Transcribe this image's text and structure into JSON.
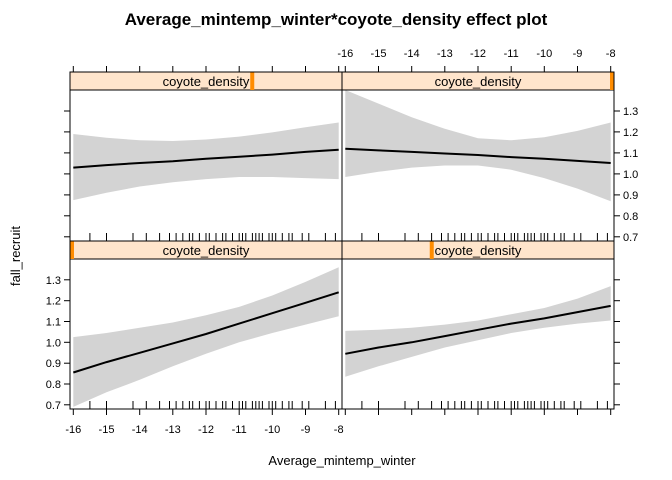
{
  "chart_data": {
    "type": "line",
    "title": "Average_mintemp_winter*coyote_density effect plot",
    "xlabel": "Average_mintemp_winter",
    "ylabel": "fall_recruit",
    "xlim": [
      -16.1,
      -7.9
    ],
    "ylim": [
      0.68,
      1.4
    ],
    "x_ticks": [
      -16,
      -15,
      -14,
      -13,
      -12,
      -11,
      -10,
      -9,
      -8
    ],
    "y_ticks": [
      0.7,
      0.8,
      0.9,
      1.0,
      1.1,
      1.2,
      1.3
    ],
    "y_tick_labels": [
      "0.7",
      "0.8",
      "0.9",
      "1.0",
      "1.1",
      "1.2",
      "1.3"
    ],
    "strip_label": "coyote_density",
    "strip_color": "#ffe5cc",
    "indicator_color": "#ff8c00",
    "band_color": "#d3d3d3",
    "line_color": "#000000",
    "rug_x": [
      -15.5,
      -15.0,
      -14.2,
      -13.8,
      -13.4,
      -13.1,
      -12.9,
      -12.7,
      -12.5,
      -12.4,
      -12.2,
      -12.0,
      -11.9,
      -11.7,
      -11.5,
      -11.4,
      -11.2,
      -11.0,
      -10.9,
      -10.8,
      -10.6,
      -10.5,
      -10.4,
      -10.3,
      -10.1,
      -10.0,
      -9.9,
      -9.7,
      -9.5,
      -9.4,
      -9.1,
      -8.9,
      -8.4,
      -8.1
    ],
    "panels": [
      {
        "position": "bottom-left",
        "indicator_fraction": 0.0,
        "x": [
          -16,
          -15,
          -14,
          -13,
          -12,
          -11,
          -10,
          -9,
          -8
        ],
        "fit": [
          0.855,
          0.905,
          0.95,
          0.995,
          1.04,
          1.09,
          1.14,
          1.19,
          1.24
        ],
        "lower": [
          0.69,
          0.76,
          0.82,
          0.885,
          0.945,
          1.0,
          1.045,
          1.085,
          1.125
        ],
        "upper": [
          1.025,
          1.045,
          1.07,
          1.095,
          1.13,
          1.17,
          1.225,
          1.29,
          1.36
        ]
      },
      {
        "position": "bottom-right",
        "indicator_fraction": 0.33,
        "x": [
          -16,
          -15,
          -14,
          -13,
          -12,
          -11,
          -10,
          -9,
          -8
        ],
        "fit": [
          0.945,
          0.975,
          1.0,
          1.03,
          1.06,
          1.09,
          1.115,
          1.145,
          1.175
        ],
        "lower": [
          0.835,
          0.885,
          0.93,
          0.975,
          1.01,
          1.045,
          1.07,
          1.09,
          1.105
        ],
        "upper": [
          1.055,
          1.06,
          1.07,
          1.085,
          1.105,
          1.135,
          1.165,
          1.21,
          1.27
        ]
      },
      {
        "position": "top-left",
        "indicator_fraction": 0.67,
        "x": [
          -16,
          -15,
          -14,
          -13,
          -12,
          -11,
          -10,
          -9,
          -8
        ],
        "fit": [
          1.03,
          1.042,
          1.052,
          1.06,
          1.072,
          1.082,
          1.092,
          1.105,
          1.115
        ],
        "lower": [
          0.875,
          0.91,
          0.94,
          0.96,
          0.975,
          0.985,
          0.985,
          0.98,
          0.975
        ],
        "upper": [
          1.19,
          1.172,
          1.16,
          1.157,
          1.164,
          1.178,
          1.198,
          1.222,
          1.245
        ]
      },
      {
        "position": "top-right",
        "indicator_fraction": 1.0,
        "x": [
          -16,
          -15,
          -14,
          -13,
          -12,
          -11,
          -10,
          -9,
          -8
        ],
        "fit": [
          1.12,
          1.112,
          1.105,
          1.097,
          1.09,
          1.08,
          1.072,
          1.062,
          1.052
        ],
        "lower": [
          0.985,
          1.01,
          1.03,
          1.04,
          1.04,
          1.02,
          0.98,
          0.93,
          0.87
        ],
        "upper": [
          1.4,
          1.335,
          1.27,
          1.215,
          1.17,
          1.16,
          1.175,
          1.205,
          1.245
        ]
      }
    ]
  }
}
